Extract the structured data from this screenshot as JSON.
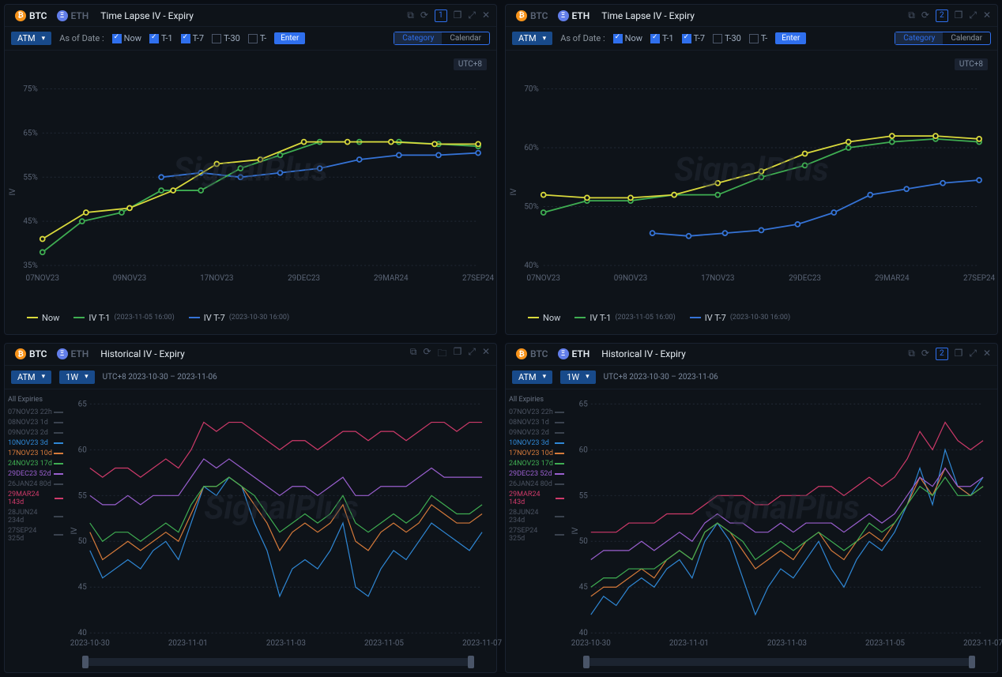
{
  "watermark": "SignalPlus",
  "utc": "UTC+8",
  "asof_label": "As of Date :",
  "checks": [
    "Now",
    "T-1",
    "T-7",
    "T-30",
    "T-"
  ],
  "checksOn": [
    true,
    true,
    true,
    false,
    false
  ],
  "enter": "Enter",
  "seg": [
    "Category",
    "Calendar"
  ],
  "atm": "ATM",
  "tw": "1W",
  "colors": {
    "now": "#d9d93c",
    "t1": "#3fae52",
    "t7": "#3573d6",
    "grid": "#222a36",
    "axis": "#5a6475",
    "bg": "#0e1319",
    "blue": "#2f6fed",
    "series": {
      "s10nov": "#2f88d6",
      "s17nov": "#d67a3a",
      "s24nov": "#3fae52",
      "s29dec": "#9a5fcf",
      "s29mar": "#cf3a6a"
    },
    "dim": "#4a5260"
  },
  "tl": {
    "title": "Time Lapse IV - Expiry",
    "xcats": [
      "07NOV23",
      "09NOV23",
      "17NOV23",
      "29DEC23",
      "29MAR24",
      "27SEP24"
    ],
    "btc": {
      "ylim": [
        35,
        75
      ],
      "ytick_step": 10,
      "yfmt": "%",
      "now": [
        41,
        47,
        48,
        52,
        58,
        59,
        63,
        63,
        63,
        62.5,
        62.5
      ],
      "t1": [
        38,
        45,
        47,
        52,
        52,
        57,
        60,
        63,
        63,
        63,
        62.5,
        62
      ],
      "t7": [
        null,
        null,
        null,
        55,
        56,
        55,
        56,
        57,
        59,
        60,
        60,
        60.5
      ]
    },
    "eth": {
      "ylim": [
        40,
        70
      ],
      "ytick_step": 10,
      "yfmt": "%",
      "now": [
        52,
        51.5,
        51.5,
        52,
        54,
        56,
        59,
        61,
        62,
        62,
        61.5
      ],
      "t1": [
        49,
        51,
        51,
        52,
        52,
        55,
        57,
        60,
        61,
        61.5,
        61
      ],
      "t7": [
        null,
        null,
        null,
        45.5,
        45,
        45.5,
        46,
        47,
        49,
        52,
        53,
        54,
        54.5
      ]
    },
    "legend": [
      {
        "label": "Now",
        "sub": ""
      },
      {
        "label": "IV T-1",
        "sub": "(2023-11-05 16:00)"
      },
      {
        "label": "IV T-7",
        "sub": "(2023-10-30 16:00)"
      }
    ]
  },
  "hist": {
    "title": "Historical IV - Expiry",
    "range": "UTC+8 2023-10-30 – 2023-11-06",
    "xcats": [
      "2023-10-30",
      "2023-11-01",
      "2023-11-03",
      "2023-11-05",
      "2023-11-07"
    ],
    "expiries": [
      {
        "label": "07NOV23 22h",
        "dim": true
      },
      {
        "label": "08NOV23 1d",
        "dim": true
      },
      {
        "label": "09NOV23 2d",
        "dim": true
      },
      {
        "label": "10NOV23 3d",
        "dim": false,
        "key": "s10nov"
      },
      {
        "label": "17NOV23 10d",
        "dim": false,
        "key": "s17nov"
      },
      {
        "label": "24NOV23 17d",
        "dim": false,
        "key": "s24nov"
      },
      {
        "label": "29DEC23 52d",
        "dim": false,
        "key": "s29dec"
      },
      {
        "label": "26JAN24 80d",
        "dim": true
      },
      {
        "label": "29MAR24 143d",
        "dim": false,
        "key": "s29mar"
      },
      {
        "label": "28JUN24 234d",
        "dim": true
      },
      {
        "label": "27SEP24 325d",
        "dim": true
      }
    ],
    "expHeader": "All Expiries",
    "btc": {
      "ylim": [
        40,
        65
      ],
      "ytick_step": 5,
      "series": {
        "s10nov": [
          49,
          46,
          47,
          48,
          47,
          49,
          50,
          48,
          52,
          56,
          55,
          57,
          56,
          52,
          49,
          44,
          47,
          48,
          47,
          49,
          52,
          45,
          44,
          47,
          49,
          48,
          50,
          52,
          51,
          50,
          49,
          51
        ],
        "s17nov": [
          51,
          48,
          49,
          50,
          49,
          50,
          51,
          50,
          53,
          56,
          56,
          57,
          56,
          54,
          52,
          49,
          51,
          52,
          51,
          52,
          54,
          50,
          49,
          51,
          52,
          51,
          52,
          54,
          53,
          52,
          52,
          53
        ],
        "s24nov": [
          52,
          50,
          51,
          51,
          50,
          51,
          52,
          51,
          54,
          56,
          56,
          57,
          56,
          55,
          53,
          51,
          52,
          53,
          52,
          53,
          55,
          52,
          51,
          52,
          53,
          52,
          53,
          55,
          54,
          53,
          53,
          54
        ],
        "s29dec": [
          55,
          54,
          54,
          55,
          54,
          55,
          55,
          55,
          57,
          59,
          58,
          59,
          58,
          57,
          56,
          55,
          56,
          56,
          55,
          56,
          57,
          55,
          55,
          56,
          56,
          56,
          57,
          58,
          57,
          57,
          57,
          57
        ],
        "s29mar": [
          58,
          57,
          58,
          58,
          57,
          58,
          59,
          58,
          60,
          63,
          62,
          63,
          63,
          62,
          61,
          60,
          61,
          61,
          60,
          61,
          62,
          62,
          61,
          62,
          62,
          61,
          62,
          63,
          63,
          62,
          63,
          63
        ]
      }
    },
    "eth": {
      "ylim": [
        40,
        65
      ],
      "ytick_step": 5,
      "series": {
        "s10nov": [
          42,
          44,
          43,
          45,
          46,
          45,
          47,
          48,
          46,
          50,
          52,
          50,
          46,
          42,
          45,
          47,
          46,
          48,
          50,
          47,
          45,
          48,
          50,
          49,
          51,
          54,
          58,
          54,
          60,
          56,
          55,
          57
        ],
        "s17nov": [
          44,
          45,
          45,
          46,
          47,
          46,
          48,
          49,
          48,
          51,
          52,
          51,
          49,
          47,
          48,
          49,
          48,
          50,
          51,
          49,
          48,
          50,
          51,
          50,
          52,
          54,
          57,
          55,
          58,
          56,
          55,
          56
        ],
        "s24nov": [
          45,
          46,
          46,
          47,
          47,
          47,
          48,
          49,
          48,
          51,
          52,
          51,
          50,
          48,
          49,
          50,
          49,
          50,
          51,
          50,
          49,
          50,
          52,
          51,
          52,
          54,
          56,
          55,
          57,
          55,
          55,
          56
        ],
        "s29dec": [
          48,
          49,
          49,
          49,
          50,
          49,
          50,
          51,
          50,
          52,
          53,
          52,
          52,
          51,
          51,
          52,
          51,
          52,
          52,
          52,
          51,
          52,
          53,
          52,
          53,
          55,
          57,
          56,
          58,
          56,
          56,
          57
        ],
        "s29mar": [
          51,
          51,
          51,
          52,
          52,
          52,
          53,
          53,
          53,
          54,
          55,
          55,
          55,
          54,
          54,
          55,
          55,
          55,
          56,
          56,
          55,
          56,
          57,
          56,
          57,
          59,
          62,
          60,
          63,
          61,
          60,
          61
        ]
      }
    }
  },
  "icons": {
    "pop": "⧉",
    "refresh": "⟳",
    "copy": "❐",
    "expand": "⤢",
    "close": "✕",
    "folder": "🗀"
  }
}
